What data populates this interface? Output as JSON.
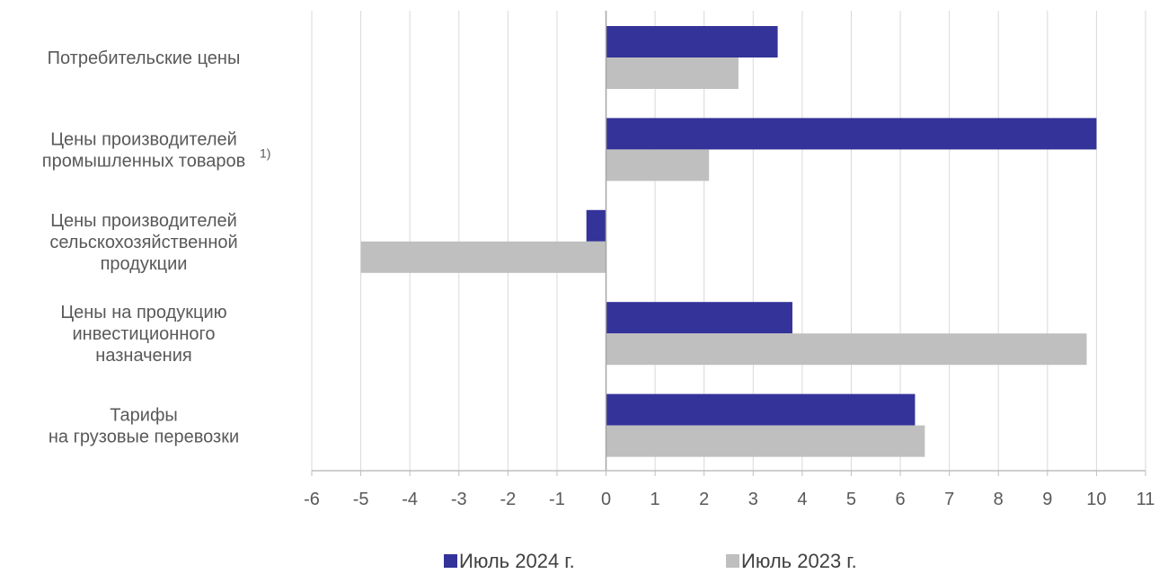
{
  "chart_data": {
    "type": "bar",
    "orientation": "horizontal",
    "categories": [
      [
        "Потребительские цены"
      ],
      [
        "Цены производителей",
        "промышленных товаров"
      ],
      [
        "Цены производителей",
        "сельскохозяйственной",
        "продукции"
      ],
      [
        "Цены на продукцию",
        "инвестиционного",
        "назначения"
      ],
      [
        "Тарифы",
        "на грузовые перевозки"
      ]
    ],
    "category_footnotes": [
      "",
      "1)",
      "",
      "",
      ""
    ],
    "series": [
      {
        "name": "Июль 2024 г.",
        "color": "#333399",
        "values": [
          3.5,
          10.0,
          -0.4,
          3.8,
          6.3
        ]
      },
      {
        "name": "Июль 2023 г.",
        "color": "#bfbfbf",
        "values": [
          2.7,
          2.1,
          -5.0,
          9.8,
          6.5
        ]
      }
    ],
    "xlim": [
      -6,
      11
    ],
    "xticks": [
      "-6",
      "-5",
      "-4",
      "-3",
      "-2",
      "-1",
      "0",
      "1",
      "2",
      "3",
      "4",
      "5",
      "6",
      "7",
      "8",
      "9",
      "10",
      "11"
    ],
    "grid": "vertical",
    "legend_position": "bottom",
    "title": "",
    "xlabel": "",
    "ylabel": ""
  }
}
